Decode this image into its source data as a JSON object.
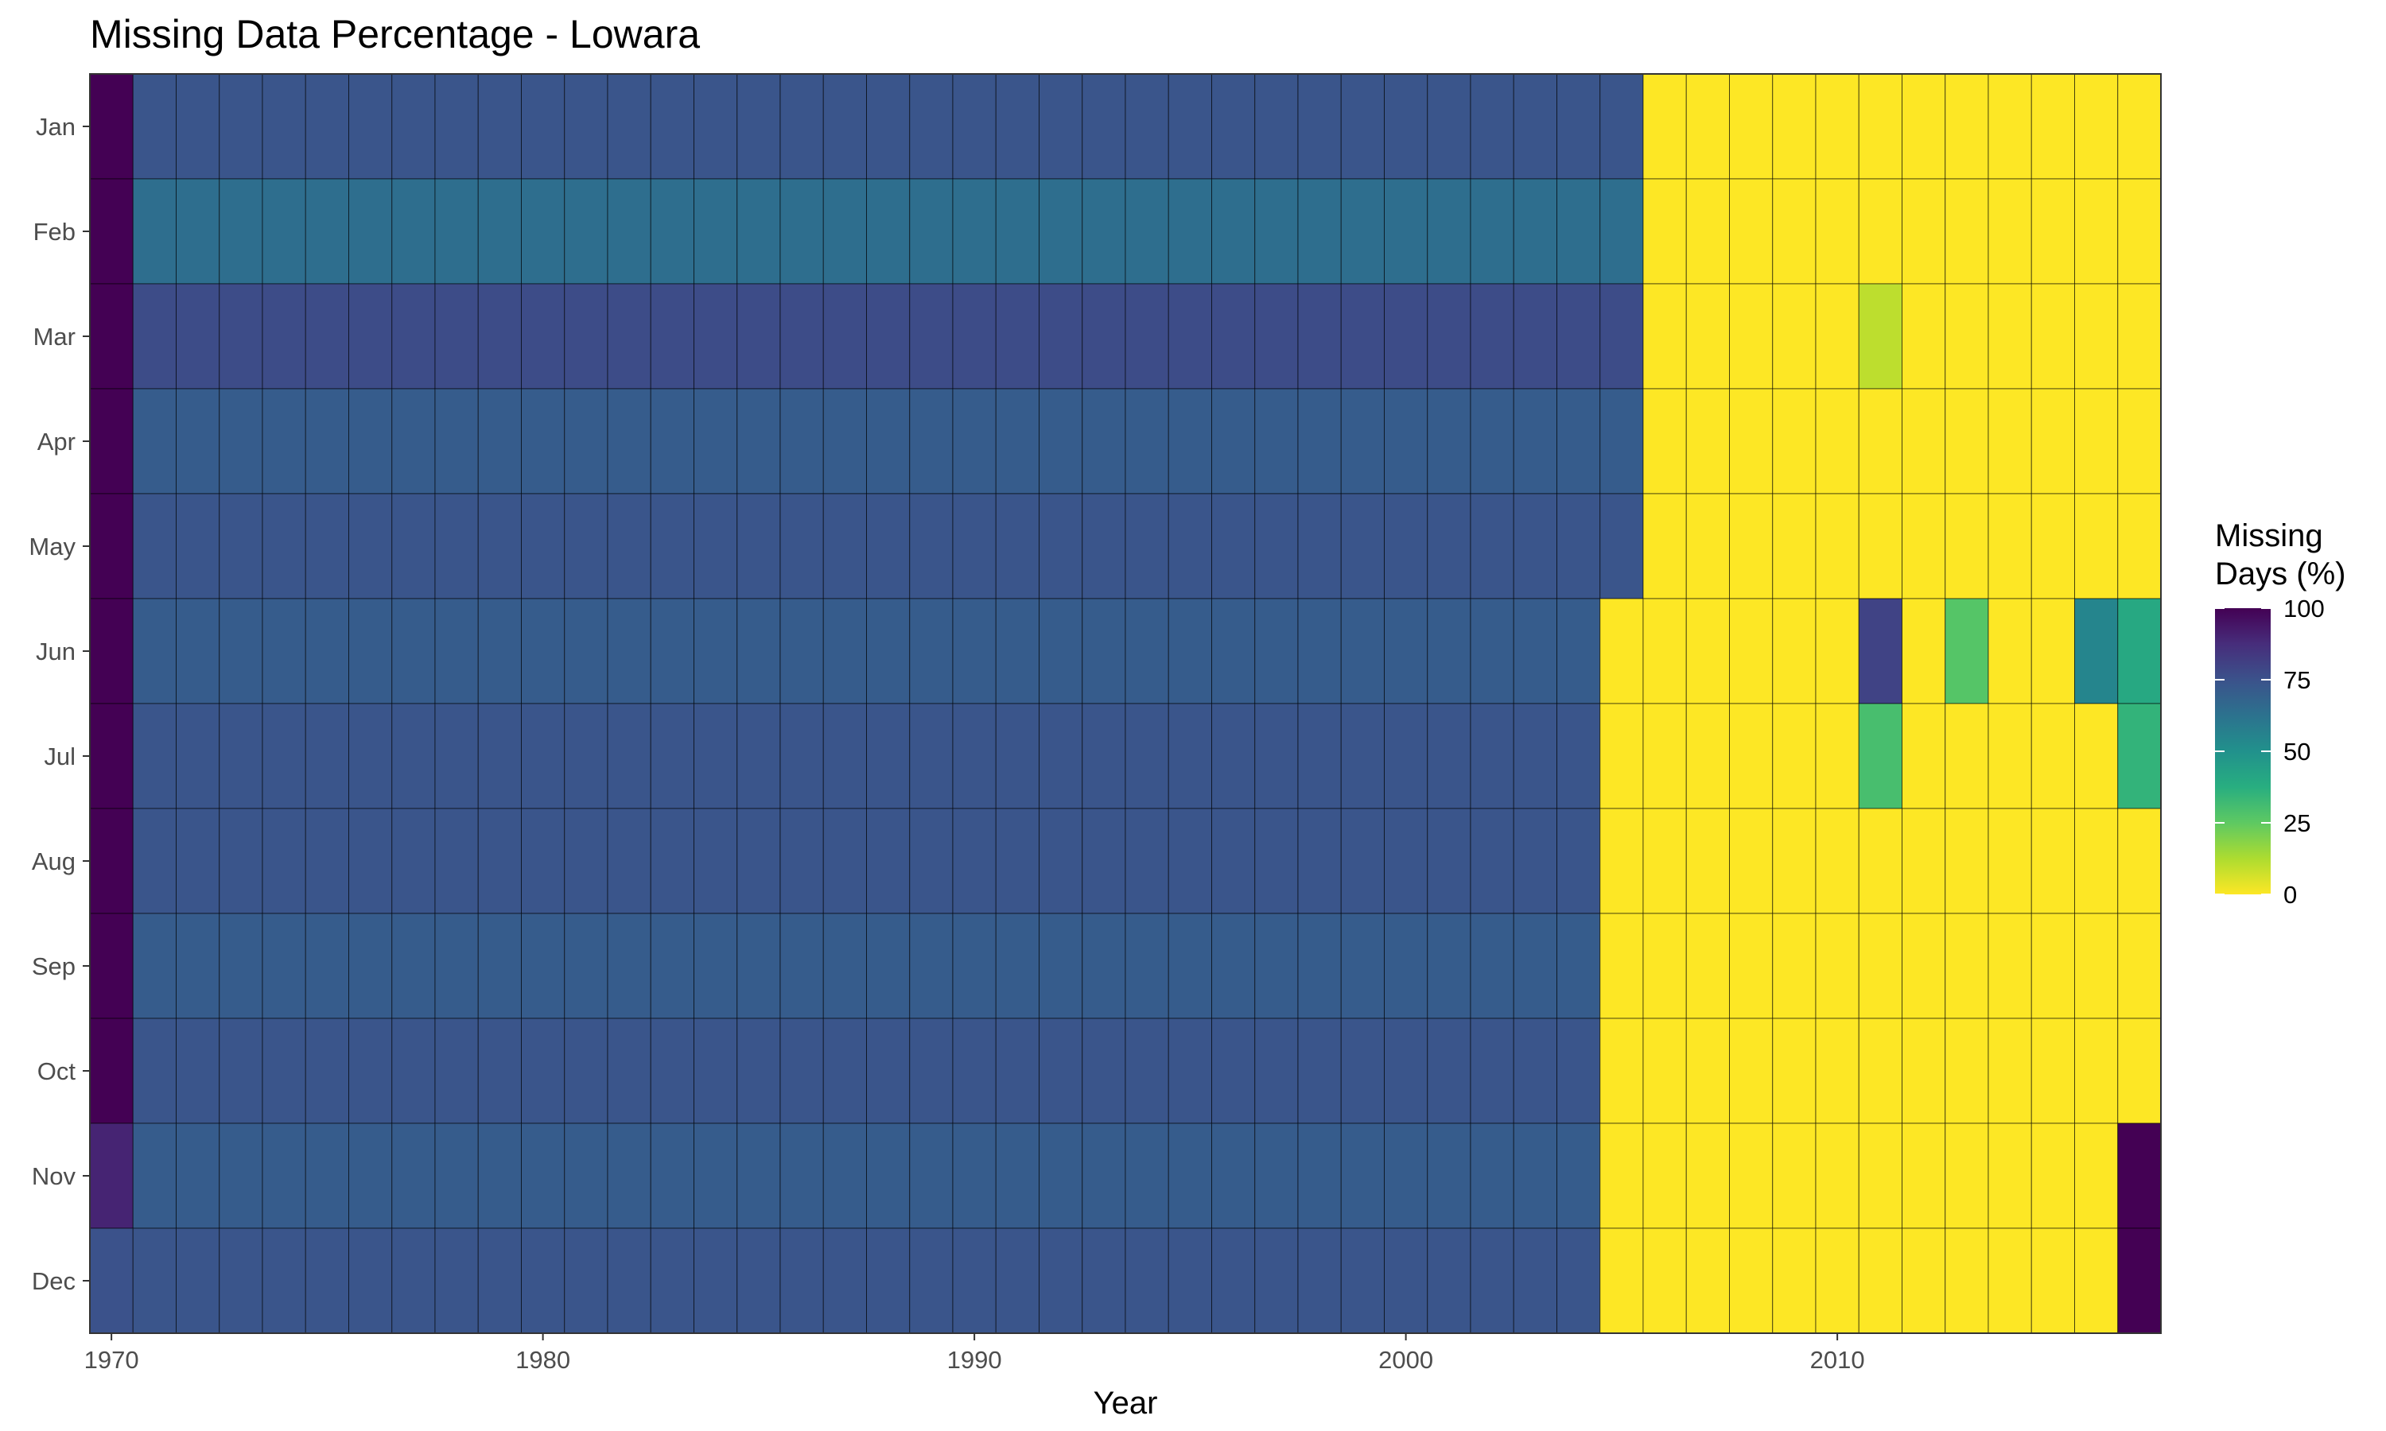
{
  "chart_data": {
    "type": "heatmap",
    "title": "Missing Data Percentage - Lowara",
    "xlabel": "Year",
    "ylabel": "",
    "x_start": 1970,
    "x_end": 2017,
    "xlim": [
      1969.5,
      2017.5
    ],
    "x_ticks": [
      1970,
      1980,
      1990,
      2000,
      2010
    ],
    "months": [
      "Jan",
      "Feb",
      "Mar",
      "Apr",
      "May",
      "Jun",
      "Jul",
      "Aug",
      "Sep",
      "Oct",
      "Nov",
      "Dec"
    ],
    "legend": {
      "title_lines": [
        "Missing",
        "Days (%)"
      ],
      "ticks": [
        100,
        75,
        50,
        25,
        0
      ],
      "range": [
        0,
        100
      ],
      "position": "right",
      "colormap": "viridis-reversed"
    },
    "grid": false,
    "base_values": {
      "1970": [
        100,
        100,
        100,
        100,
        100,
        100,
        100,
        100,
        100,
        100,
        90,
        75
      ],
      "1971_to_cutoff": [
        74,
        64,
        77,
        71,
        74,
        71,
        74,
        74,
        71,
        74,
        71,
        74
      ],
      "cutoff_years": [
        2005,
        2005,
        2005,
        2005,
        2005,
        2004,
        2004,
        2004,
        2004,
        2004,
        2004,
        2004
      ],
      "after_cutoff": 0
    },
    "overrides": [
      {
        "year": 2011,
        "month": "Mar",
        "value": 10
      },
      {
        "year": 2011,
        "month": "Jun",
        "value": 80
      },
      {
        "year": 2013,
        "month": "Jun",
        "value": 27
      },
      {
        "year": 2016,
        "month": "Jun",
        "value": 55
      },
      {
        "year": 2017,
        "month": "Jun",
        "value": 40
      },
      {
        "year": 2011,
        "month": "Jul",
        "value": 30
      },
      {
        "year": 2017,
        "month": "Jul",
        "value": 35
      },
      {
        "year": 2017,
        "month": "Nov",
        "value": 100
      },
      {
        "year": 2017,
        "month": "Dec",
        "value": 100
      }
    ]
  }
}
